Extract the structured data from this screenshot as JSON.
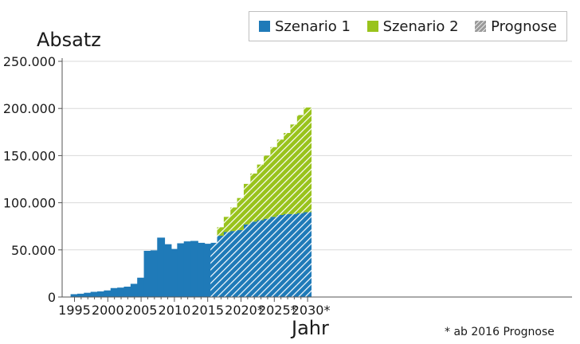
{
  "chart_data": {
    "type": "bar",
    "stacked": true,
    "ylabel": "Absatz",
    "xlabel": "Jahr",
    "ylim": [
      0,
      250000
    ],
    "yticks": [
      0,
      50000,
      100000,
      150000,
      200000,
      250000
    ],
    "ytick_labels": [
      "0",
      "50.000",
      "100.000",
      "150.000",
      "200.000",
      "250.000"
    ],
    "xticks": [
      1995,
      2000,
      2005,
      2010,
      2015,
      2020,
      2025,
      2030
    ],
    "xtick_labels": [
      "1995",
      "2000",
      "2005",
      "2010",
      "2015",
      "2020*",
      "2025*",
      "2030*"
    ],
    "categories": [
      1995,
      1996,
      1997,
      1998,
      1999,
      2000,
      2001,
      2002,
      2003,
      2004,
      2005,
      2006,
      2007,
      2008,
      2009,
      2010,
      2011,
      2012,
      2013,
      2014,
      2015,
      2016,
      2017,
      2018,
      2019,
      2020,
      2021,
      2022,
      2023,
      2024,
      2025,
      2026,
      2027,
      2028,
      2029,
      2030
    ],
    "series": [
      {
        "name": "Szenario 1",
        "color": "#1f7ab8",
        "values": [
          3000,
          3500,
          4500,
          5500,
          6000,
          7000,
          9500,
          10000,
          11000,
          14000,
          20500,
          49000,
          49500,
          63000,
          56000,
          51000,
          57000,
          59000,
          59500,
          57500,
          56500,
          57500,
          65000,
          69000,
          70000,
          71000,
          77000,
          80000,
          81500,
          83000,
          85000,
          87000,
          88000,
          88000,
          89000,
          90000
        ]
      },
      {
        "name": "Szenario 2",
        "color": "#99c31c",
        "values": [
          0,
          0,
          0,
          0,
          0,
          0,
          0,
          0,
          0,
          0,
          0,
          0,
          0,
          0,
          0,
          0,
          0,
          0,
          0,
          0,
          0,
          0,
          9000,
          16000,
          25000,
          34000,
          43000,
          51000,
          59000,
          67000,
          74000,
          80000,
          86000,
          95000,
          104000,
          111000
        ]
      }
    ],
    "forecast_from": 2016,
    "legend": [
      {
        "label": "Szenario 1",
        "color": "#1f7ab8"
      },
      {
        "label": "Szenario 2",
        "color": "#99c31c"
      },
      {
        "label": "Prognose",
        "color": "#9a9a9a",
        "pattern": "hatch"
      }
    ],
    "legend_position": "top-right",
    "note": "* ab 2016 Prognose"
  }
}
